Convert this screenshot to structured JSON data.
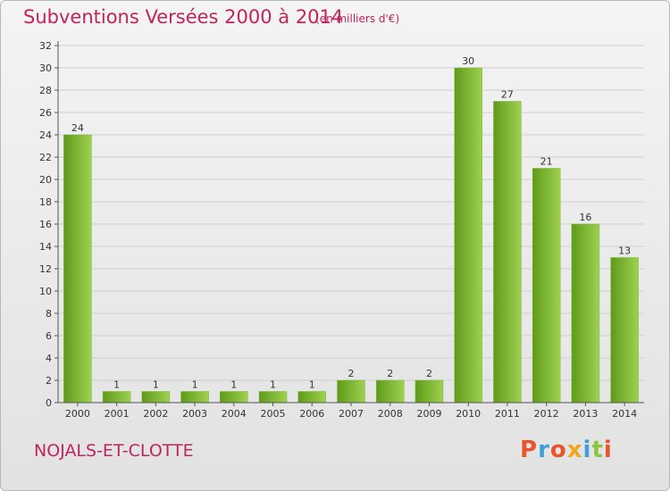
{
  "title": "Subventions Versées 2000 à 2014",
  "subtitle": "(en milliers d'€)",
  "commune": "NOJALS-ET-CLOTTE",
  "logo": {
    "text": "Proxiti",
    "colors": [
      "#e8552a",
      "#3fa0d8",
      "#e8552a",
      "#f2a51f",
      "#3fa0d8",
      "#8cc63f",
      "#e8552a"
    ]
  },
  "colors": {
    "title": "#c0245c",
    "bar_light": "#9ed14f",
    "bar_dark": "#5f9a1a",
    "axis": "#555555",
    "grid": "#cfcfcf"
  },
  "chart_data": {
    "type": "bar",
    "categories": [
      "2000",
      "2001",
      "2002",
      "2003",
      "2004",
      "2005",
      "2006",
      "2007",
      "2008",
      "2009",
      "2010",
      "2011",
      "2012",
      "2013",
      "2014"
    ],
    "values": [
      24,
      1,
      1,
      1,
      1,
      1,
      1,
      2,
      2,
      2,
      30,
      27,
      21,
      16,
      13
    ],
    "ylim": [
      0,
      32
    ],
    "yticks": [
      0,
      2,
      4,
      6,
      8,
      10,
      12,
      14,
      16,
      18,
      20,
      22,
      24,
      26,
      28,
      30,
      32
    ],
    "grid": true,
    "data_labels": true
  }
}
